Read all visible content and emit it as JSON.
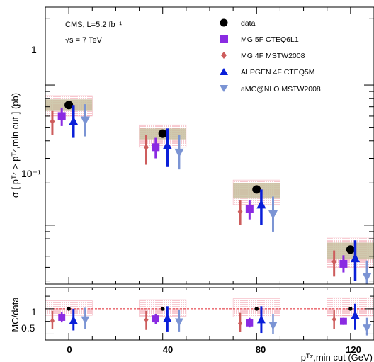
{
  "chart_data": {
    "type": "scatter",
    "annotation_lumi": "CMS, L=5.2 fb⁻¹",
    "annotation_energy": "√s = 7 TeV",
    "ylabel_main": "σ [ pᵀᶻ > pᵀᶻ,min cut ] (pb)",
    "ylabel_ratio": "MC/data",
    "xlabel": "pᵀᶻ,min cut (GeV)",
    "categories": [
      "0",
      "40",
      "80",
      "120"
    ],
    "y_tick_labels": [
      "1",
      "10⁻¹"
    ],
    "ratio_tick_labels": [
      "1",
      "0.5"
    ],
    "ylim": [
      0.038,
      3.6
    ],
    "yscale": "log",
    "ratio_ylim": [
      0.38,
      1.42
    ],
    "colors": {
      "data": "#000000",
      "MG 5F CTEQ6L1": "#8a2be2",
      "MG 4F MSTW2008": "#cd5c5c",
      "ALPGEN 4F CTEQ5M": "#0a1fd9",
      "aMC@NLO MSTW2008": "#7b94d4",
      "syst_band": "#c8bfa0",
      "theory_band": "#f3a8b4"
    },
    "series": [
      {
        "name": "data",
        "values": [
          0.72,
          0.45,
          0.18,
          0.067
        ],
        "err_low": [
          0.66,
          0.41,
          0.16,
          0.058
        ],
        "err_high": [
          0.79,
          0.5,
          0.2,
          0.075
        ]
      },
      {
        "name": "MG 5F CTEQ6L1",
        "values": [
          0.6,
          0.36,
          0.13,
          0.053
        ],
        "err_low": [
          0.51,
          0.3,
          0.11,
          0.046
        ],
        "err_high": [
          0.69,
          0.42,
          0.15,
          0.061
        ]
      },
      {
        "name": "MG 4F MSTW2008",
        "values": [
          0.55,
          0.36,
          0.125,
          0.055
        ],
        "err_low": [
          0.44,
          0.27,
          0.1,
          0.043
        ],
        "err_high": [
          0.66,
          0.44,
          0.15,
          0.066
        ]
      },
      {
        "name": "ALPGEN 4F CTEQ5M",
        "values": [
          0.55,
          0.37,
          0.14,
          0.058
        ],
        "err_low": [
          0.42,
          0.26,
          0.1,
          0.04
        ],
        "err_high": [
          0.72,
          0.49,
          0.18,
          0.078
        ]
      },
      {
        "name": "aMC@NLO MSTW2008",
        "values": [
          0.56,
          0.33,
          0.12,
          0.043
        ],
        "err_low": [
          0.43,
          0.25,
          0.09,
          0.033
        ],
        "err_high": [
          0.73,
          0.44,
          0.16,
          0.056
        ]
      }
    ],
    "ratio_series": [
      {
        "name": "data",
        "values": [
          1.0,
          1.0,
          1.0,
          1.0
        ]
      },
      {
        "name": "MG 5F CTEQ6L1",
        "values": [
          0.83,
          0.8,
          0.72,
          0.75
        ],
        "err_low": [
          0.73,
          0.7,
          0.63,
          0.68
        ],
        "err_high": [
          0.93,
          0.9,
          0.82,
          0.82
        ]
      },
      {
        "name": "MG 4F MSTW2008",
        "values": [
          0.76,
          0.78,
          0.71,
          0.79
        ],
        "err_low": [
          0.6,
          0.58,
          0.54,
          0.6
        ],
        "err_high": [
          0.96,
          0.96,
          0.92,
          0.97
        ]
      },
      {
        "name": "ALPGEN 4F CTEQ5M",
        "values": [
          0.77,
          0.81,
          0.78,
          0.87
        ],
        "err_low": [
          0.57,
          0.55,
          0.52,
          0.58
        ],
        "err_high": [
          1.0,
          1.05,
          1.05,
          1.1
        ]
      },
      {
        "name": "aMC@NLO MSTW2008",
        "values": [
          0.78,
          0.74,
          0.67,
          0.62
        ],
        "err_low": [
          0.6,
          0.55,
          0.5,
          0.47
        ],
        "err_high": [
          1.02,
          0.98,
          0.9,
          0.82
        ]
      }
    ],
    "data_syst_band": [
      [
        0.66,
        0.79
      ],
      [
        0.41,
        0.49
      ],
      [
        0.155,
        0.2
      ],
      [
        0.057,
        0.075
      ]
    ],
    "theory_band": [
      [
        0.6,
        0.84
      ],
      [
        0.36,
        0.52
      ],
      [
        0.14,
        0.21
      ],
      [
        0.05,
        0.082
      ]
    ],
    "ratio_theory_band": [
      [
        0.87,
        1.16
      ],
      [
        0.85,
        1.18
      ],
      [
        0.84,
        1.2
      ],
      [
        0.86,
        1.22
      ]
    ],
    "ratio_reference_line": 1.0,
    "legend_position": "top-right"
  }
}
